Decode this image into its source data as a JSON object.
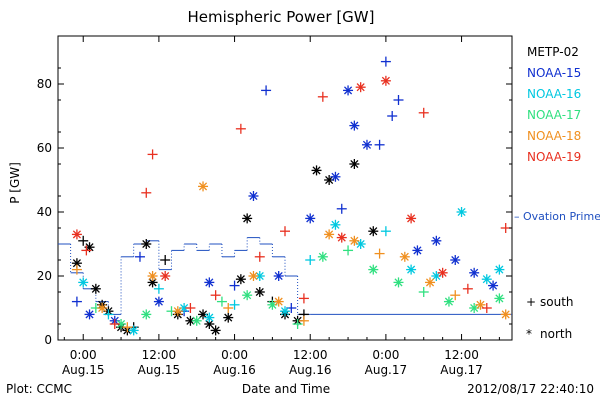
{
  "chart_data": {
    "type": "scatter",
    "title": "Hemispheric Power [GW]",
    "xlabel": "Date and Time",
    "ylabel": "P [GW]",
    "ylim": [
      0,
      95
    ],
    "yticks": [
      0,
      20,
      40,
      60,
      80
    ],
    "x_unit": "hours from 2012-08-15 00:00 UT",
    "xlim": [
      -4,
      68
    ],
    "xticks": [
      {
        "x": 0,
        "time": "0:00",
        "date": "Aug.15"
      },
      {
        "x": 12,
        "time": "12:00",
        "date": "Aug.15"
      },
      {
        "x": 24,
        "time": "0:00",
        "date": "Aug.16"
      },
      {
        "x": 36,
        "time": "12:00",
        "date": "Aug.16"
      },
      {
        "x": 48,
        "time": "0:00",
        "date": "Aug.17"
      },
      {
        "x": 60,
        "time": "12:00",
        "date": "Aug.17"
      }
    ],
    "legend_position": "right",
    "marker_legend": [
      {
        "symbol": "+",
        "label": "south"
      },
      {
        "symbol": "*",
        "label": "north"
      }
    ],
    "series": [
      {
        "name": "METP-02",
        "color": "#000000",
        "points": [
          {
            "x": -1.0,
            "y": 24,
            "h": "north"
          },
          {
            "x": 0.0,
            "y": 31,
            "h": "south"
          },
          {
            "x": 1.0,
            "y": 29,
            "h": "north"
          },
          {
            "x": 2.0,
            "y": 16,
            "h": "north"
          },
          {
            "x": 3.0,
            "y": 11,
            "h": "north"
          },
          {
            "x": 4.0,
            "y": 9,
            "h": "north"
          },
          {
            "x": 6.0,
            "y": 4,
            "h": "north"
          },
          {
            "x": 7.0,
            "y": 3,
            "h": "north"
          },
          {
            "x": 8.0,
            "y": 4,
            "h": "south"
          },
          {
            "x": 10.0,
            "y": 30,
            "h": "north"
          },
          {
            "x": 11.0,
            "y": 18,
            "h": "north"
          },
          {
            "x": 13.0,
            "y": 25,
            "h": "south"
          },
          {
            "x": 15.0,
            "y": 8,
            "h": "north"
          },
          {
            "x": 17.0,
            "y": 6,
            "h": "north"
          },
          {
            "x": 19.0,
            "y": 8,
            "h": "north"
          },
          {
            "x": 20.0,
            "y": 5,
            "h": "north"
          },
          {
            "x": 21.0,
            "y": 3,
            "h": "north"
          },
          {
            "x": 23.0,
            "y": 7,
            "h": "north"
          },
          {
            "x": 25.0,
            "y": 19,
            "h": "north"
          },
          {
            "x": 26.0,
            "y": 38,
            "h": "north"
          },
          {
            "x": 28.0,
            "y": 15,
            "h": "north"
          },
          {
            "x": 30.0,
            "y": 12,
            "h": "south"
          },
          {
            "x": 32.0,
            "y": 8,
            "h": "north"
          },
          {
            "x": 34.0,
            "y": 6,
            "h": "north"
          },
          {
            "x": 35.0,
            "y": 8,
            "h": "south"
          },
          {
            "x": 37.0,
            "y": 53,
            "h": "north"
          },
          {
            "x": 39.0,
            "y": 50,
            "h": "north"
          },
          {
            "x": 43.0,
            "y": 55,
            "h": "north"
          },
          {
            "x": 46.0,
            "y": 34,
            "h": "north"
          }
        ]
      },
      {
        "name": "NOAA-15",
        "color": "#1030d0",
        "points": [
          {
            "x": -1.0,
            "y": 12,
            "h": "south"
          },
          {
            "x": 1.0,
            "y": 8,
            "h": "north"
          },
          {
            "x": 5.0,
            "y": 6,
            "h": "north"
          },
          {
            "x": 9.0,
            "y": 26,
            "h": "south"
          },
          {
            "x": 12.0,
            "y": 12,
            "h": "north"
          },
          {
            "x": 16.0,
            "y": 9,
            "h": "south"
          },
          {
            "x": 20.0,
            "y": 18,
            "h": "north"
          },
          {
            "x": 24.0,
            "y": 17,
            "h": "south"
          },
          {
            "x": 27.0,
            "y": 45,
            "h": "north"
          },
          {
            "x": 29.0,
            "y": 78,
            "h": "south"
          },
          {
            "x": 31.0,
            "y": 20,
            "h": "north"
          },
          {
            "x": 33.0,
            "y": 10,
            "h": "south"
          },
          {
            "x": 36.0,
            "y": 38,
            "h": "north"
          },
          {
            "x": 40.0,
            "y": 51,
            "h": "north"
          },
          {
            "x": 41.0,
            "y": 41,
            "h": "south"
          },
          {
            "x": 42.0,
            "y": 78,
            "h": "north"
          },
          {
            "x": 43.0,
            "y": 67,
            "h": "north"
          },
          {
            "x": 45.0,
            "y": 61,
            "h": "north"
          },
          {
            "x": 47.0,
            "y": 61,
            "h": "south"
          },
          {
            "x": 48.0,
            "y": 87,
            "h": "south"
          },
          {
            "x": 49.0,
            "y": 70,
            "h": "south"
          },
          {
            "x": 50.0,
            "y": 75,
            "h": "south"
          },
          {
            "x": 53.0,
            "y": 28,
            "h": "north"
          },
          {
            "x": 56.0,
            "y": 31,
            "h": "north"
          },
          {
            "x": 59.0,
            "y": 25,
            "h": "north"
          },
          {
            "x": 62.0,
            "y": 21,
            "h": "north"
          },
          {
            "x": 65.0,
            "y": 17,
            "h": "north"
          }
        ]
      },
      {
        "name": "NOAA-16",
        "color": "#00c8e0",
        "points": [
          {
            "x": 0.0,
            "y": 18,
            "h": "north"
          },
          {
            "x": 4.0,
            "y": 8,
            "h": "south"
          },
          {
            "x": 8.0,
            "y": 3,
            "h": "north"
          },
          {
            "x": 12.0,
            "y": 16,
            "h": "south"
          },
          {
            "x": 16.0,
            "y": 10,
            "h": "north"
          },
          {
            "x": 20.0,
            "y": 7,
            "h": "north"
          },
          {
            "x": 24.0,
            "y": 11,
            "h": "south"
          },
          {
            "x": 28.0,
            "y": 20,
            "h": "north"
          },
          {
            "x": 32.0,
            "y": 9,
            "h": "north"
          },
          {
            "x": 36.0,
            "y": 25,
            "h": "south"
          },
          {
            "x": 40.0,
            "y": 36,
            "h": "north"
          },
          {
            "x": 44.0,
            "y": 30,
            "h": "north"
          },
          {
            "x": 48.0,
            "y": 34,
            "h": "south"
          },
          {
            "x": 52.0,
            "y": 22,
            "h": "north"
          },
          {
            "x": 56.0,
            "y": 20,
            "h": "north"
          },
          {
            "x": 60.0,
            "y": 40,
            "h": "north"
          },
          {
            "x": 64.0,
            "y": 19,
            "h": "north"
          },
          {
            "x": 66.0,
            "y": 22,
            "h": "north"
          }
        ]
      },
      {
        "name": "NOAA-17",
        "color": "#30e080",
        "points": [
          {
            "x": 2.0,
            "y": 10,
            "h": "south"
          },
          {
            "x": 6.0,
            "y": 5,
            "h": "north"
          },
          {
            "x": 10.0,
            "y": 8,
            "h": "north"
          },
          {
            "x": 14.0,
            "y": 9,
            "h": "south"
          },
          {
            "x": 18.0,
            "y": 6,
            "h": "north"
          },
          {
            "x": 22.0,
            "y": 12,
            "h": "south"
          },
          {
            "x": 26.0,
            "y": 14,
            "h": "north"
          },
          {
            "x": 30.0,
            "y": 11,
            "h": "north"
          },
          {
            "x": 34.0,
            "y": 5,
            "h": "south"
          },
          {
            "x": 38.0,
            "y": 26,
            "h": "north"
          },
          {
            "x": 42.0,
            "y": 28,
            "h": "south"
          },
          {
            "x": 46.0,
            "y": 22,
            "h": "north"
          },
          {
            "x": 50.0,
            "y": 18,
            "h": "north"
          },
          {
            "x": 54.0,
            "y": 15,
            "h": "south"
          },
          {
            "x": 58.0,
            "y": 12,
            "h": "north"
          },
          {
            "x": 62.0,
            "y": 10,
            "h": "north"
          },
          {
            "x": 66.0,
            "y": 13,
            "h": "north"
          }
        ]
      },
      {
        "name": "NOAA-18",
        "color": "#f09020",
        "points": [
          {
            "x": -1.0,
            "y": 22,
            "h": "south"
          },
          {
            "x": 3.0,
            "y": 10,
            "h": "north"
          },
          {
            "x": 7.0,
            "y": 4,
            "h": "south"
          },
          {
            "x": 11.0,
            "y": 20,
            "h": "north"
          },
          {
            "x": 15.0,
            "y": 9,
            "h": "north"
          },
          {
            "x": 19.0,
            "y": 48,
            "h": "north"
          },
          {
            "x": 23.0,
            "y": 10,
            "h": "south"
          },
          {
            "x": 27.0,
            "y": 20,
            "h": "north"
          },
          {
            "x": 31.0,
            "y": 12,
            "h": "north"
          },
          {
            "x": 35.0,
            "y": 6,
            "h": "south"
          },
          {
            "x": 39.0,
            "y": 33,
            "h": "north"
          },
          {
            "x": 43.0,
            "y": 31,
            "h": "north"
          },
          {
            "x": 47.0,
            "y": 27,
            "h": "south"
          },
          {
            "x": 51.0,
            "y": 26,
            "h": "north"
          },
          {
            "x": 55.0,
            "y": 18,
            "h": "north"
          },
          {
            "x": 59.0,
            "y": 14,
            "h": "south"
          },
          {
            "x": 63.0,
            "y": 11,
            "h": "north"
          },
          {
            "x": 67.0,
            "y": 8,
            "h": "north"
          }
        ]
      },
      {
        "name": "NOAA-19",
        "color": "#e83020",
        "points": [
          {
            "x": -1.0,
            "y": 33,
            "h": "north"
          },
          {
            "x": 0.5,
            "y": 28,
            "h": "south"
          },
          {
            "x": 5.0,
            "y": 5,
            "h": "south"
          },
          {
            "x": 10.0,
            "y": 46,
            "h": "south"
          },
          {
            "x": 11.0,
            "y": 58,
            "h": "south"
          },
          {
            "x": 13.0,
            "y": 20,
            "h": "north"
          },
          {
            "x": 17.0,
            "y": 10,
            "h": "south"
          },
          {
            "x": 21.0,
            "y": 14,
            "h": "south"
          },
          {
            "x": 25.0,
            "y": 66,
            "h": "south"
          },
          {
            "x": 28.0,
            "y": 26,
            "h": "south"
          },
          {
            "x": 32.0,
            "y": 34,
            "h": "south"
          },
          {
            "x": 35.0,
            "y": 13,
            "h": "south"
          },
          {
            "x": 38.0,
            "y": 76,
            "h": "south"
          },
          {
            "x": 41.0,
            "y": 32,
            "h": "north"
          },
          {
            "x": 44.0,
            "y": 79,
            "h": "north"
          },
          {
            "x": 48.0,
            "y": 81,
            "h": "north"
          },
          {
            "x": 52.0,
            "y": 38,
            "h": "north"
          },
          {
            "x": 54.0,
            "y": 71,
            "h": "south"
          },
          {
            "x": 57.0,
            "y": 21,
            "h": "north"
          },
          {
            "x": 61.0,
            "y": 16,
            "h": "south"
          },
          {
            "x": 64.0,
            "y": 10,
            "h": "south"
          },
          {
            "x": 67.0,
            "y": 35,
            "h": "south"
          }
        ]
      }
    ],
    "ovation": {
      "name": "– Ovation Prime HPI",
      "color": "#2050c0",
      "steps": [
        {
          "x": -4,
          "y": 30
        },
        {
          "x": -2,
          "y": 21
        },
        {
          "x": 0,
          "y": 16
        },
        {
          "x": 2,
          "y": 12
        },
        {
          "x": 4,
          "y": 8
        },
        {
          "x": 6,
          "y": 26
        },
        {
          "x": 8,
          "y": 30
        },
        {
          "x": 10,
          "y": 31
        },
        {
          "x": 12,
          "y": 22
        },
        {
          "x": 14,
          "y": 28
        },
        {
          "x": 16,
          "y": 30
        },
        {
          "x": 18,
          "y": 28
        },
        {
          "x": 20,
          "y": 30
        },
        {
          "x": 22,
          "y": 26
        },
        {
          "x": 24,
          "y": 28
        },
        {
          "x": 26,
          "y": 32
        },
        {
          "x": 28,
          "y": 30
        },
        {
          "x": 30,
          "y": 26
        },
        {
          "x": 32,
          "y": 20
        },
        {
          "x": 34,
          "y": 8
        },
        {
          "x": 36,
          "y": 8
        },
        {
          "x": 68,
          "y": 8
        }
      ]
    }
  },
  "footer": {
    "left": "Plot: CCMC",
    "right": "2012/08/17 22:40:10"
  }
}
